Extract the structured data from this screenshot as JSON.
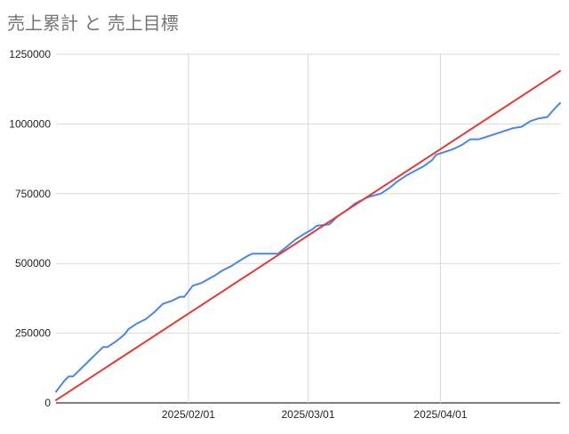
{
  "chart_data": {
    "type": "line",
    "title": "売上累計 と 売上目標",
    "xlabel": "",
    "ylabel": "",
    "x_range": [
      "2025-01-01",
      "2025-04-29"
    ],
    "ylim": [
      0,
      1250000
    ],
    "y_ticks": [
      0,
      250000,
      500000,
      750000,
      1000000,
      1250000
    ],
    "y_tick_labels": [
      "0",
      "250000",
      "500000",
      "750000",
      "1000000",
      "1250000"
    ],
    "x_ticks": [
      "2025-02-01",
      "2025-03-01",
      "2025-04-01"
    ],
    "x_tick_labels": [
      "2025/02/01",
      "2025/03/01",
      "2025/04/01"
    ],
    "grid": true,
    "legend": "none",
    "series": [
      {
        "color": "#4a86e8",
        "x": [
          "2025-01-01",
          "2025-01-03",
          "2025-01-04",
          "2025-01-05",
          "2025-01-08",
          "2025-01-10",
          "2025-01-12",
          "2025-01-13",
          "2025-01-15",
          "2025-01-17",
          "2025-01-18",
          "2025-01-20",
          "2025-01-22",
          "2025-01-24",
          "2025-01-26",
          "2025-01-28",
          "2025-01-30",
          "2025-01-31",
          "2025-02-02",
          "2025-02-04",
          "2025-02-07",
          "2025-02-09",
          "2025-02-11",
          "2025-02-13",
          "2025-02-15",
          "2025-02-16",
          "2025-02-22",
          "2025-02-24",
          "2025-02-26",
          "2025-02-28",
          "2025-03-02",
          "2025-03-03",
          "2025-03-06",
          "2025-03-08",
          "2025-03-10",
          "2025-03-12",
          "2025-03-14",
          "2025-03-15",
          "2025-03-18",
          "2025-03-20",
          "2025-03-22",
          "2025-03-24",
          "2025-03-26",
          "2025-03-28",
          "2025-03-30",
          "2025-03-31",
          "2025-04-02",
          "2025-04-04",
          "2025-04-06",
          "2025-04-08",
          "2025-04-10",
          "2025-04-12",
          "2025-04-14",
          "2025-04-16",
          "2025-04-18",
          "2025-04-20",
          "2025-04-22",
          "2025-04-24",
          "2025-04-26",
          "2025-04-28",
          "2025-04-29"
        ],
        "values": [
          40000,
          80000,
          95000,
          95000,
          140000,
          170000,
          200000,
          200000,
          220000,
          245000,
          265000,
          285000,
          300000,
          325000,
          355000,
          365000,
          380000,
          380000,
          420000,
          430000,
          455000,
          475000,
          490000,
          510000,
          528000,
          535000,
          535000,
          560000,
          585000,
          605000,
          622000,
          635000,
          640000,
          670000,
          690000,
          715000,
          730000,
          738000,
          750000,
          770000,
          795000,
          815000,
          832000,
          848000,
          870000,
          890000,
          900000,
          910000,
          925000,
          945000,
          945000,
          955000,
          965000,
          975000,
          985000,
          990000,
          1010000,
          1020000,
          1025000,
          1060000,
          1075000
        ]
      },
      {
        "color": "#e53935",
        "x": [
          "2025-01-01",
          "2025-04-29"
        ],
        "values": [
          10000,
          1190000
        ]
      }
    ]
  }
}
